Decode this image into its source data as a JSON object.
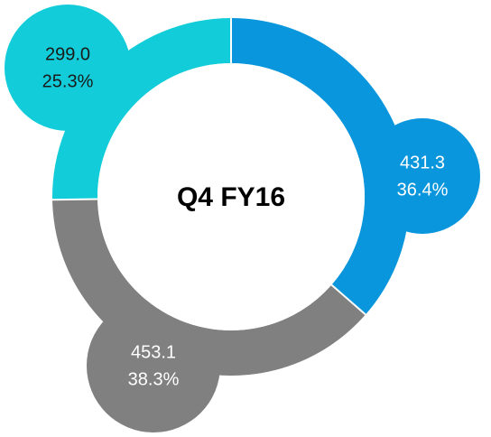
{
  "chart_data": {
    "type": "donut",
    "center_label": "Q4 FY16",
    "values": [
      431.3,
      453.1,
      299.0
    ],
    "value_labels": [
      "431.3",
      "453.1",
      "299.0"
    ],
    "percentages": [
      36.4,
      38.3,
      25.3
    ],
    "percentage_labels": [
      "36.4%",
      "38.3%",
      "25.3%"
    ],
    "colors": [
      "#0a96dc",
      "#808080",
      "#12cdd9"
    ]
  }
}
